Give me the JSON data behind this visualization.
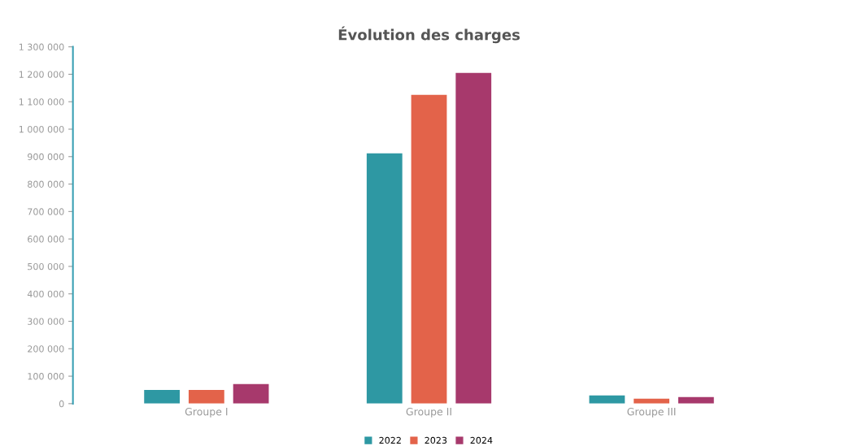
{
  "chart_data": {
    "type": "bar",
    "title": "Évolution des charges",
    "categories": [
      "Groupe I",
      "Groupe II",
      "Groupe III"
    ],
    "series": [
      {
        "name": "2022",
        "color": "#2e98a3",
        "values": [
          50000,
          912000,
          30000
        ]
      },
      {
        "name": "2023",
        "color": "#e3634a",
        "values": [
          50000,
          1125000,
          18000
        ]
      },
      {
        "name": "2024",
        "color": "#a7396c",
        "values": [
          71000,
          1205000,
          24000
        ]
      }
    ],
    "ylim": [
      0,
      1300000
    ],
    "yticks": [
      {
        "value": 0,
        "label": "0"
      },
      {
        "value": 100000,
        "label": "100 000"
      },
      {
        "value": 200000,
        "label": "200 000"
      },
      {
        "value": 300000,
        "label": "300 000"
      },
      {
        "value": 400000,
        "label": "400 000"
      },
      {
        "value": 500000,
        "label": "500 000"
      },
      {
        "value": 600000,
        "label": "600 000"
      },
      {
        "value": 700000,
        "label": "700 000"
      },
      {
        "value": 800000,
        "label": "800 000"
      },
      {
        "value": 900000,
        "label": "900 000"
      },
      {
        "value": 1000000,
        "label": "1 000 000"
      },
      {
        "value": 1100000,
        "label": "1 100 000"
      },
      {
        "value": 1200000,
        "label": "1 200 000"
      },
      {
        "value": 1300000,
        "label": "1 300 000"
      }
    ],
    "grid": false,
    "legend": "bottom"
  }
}
